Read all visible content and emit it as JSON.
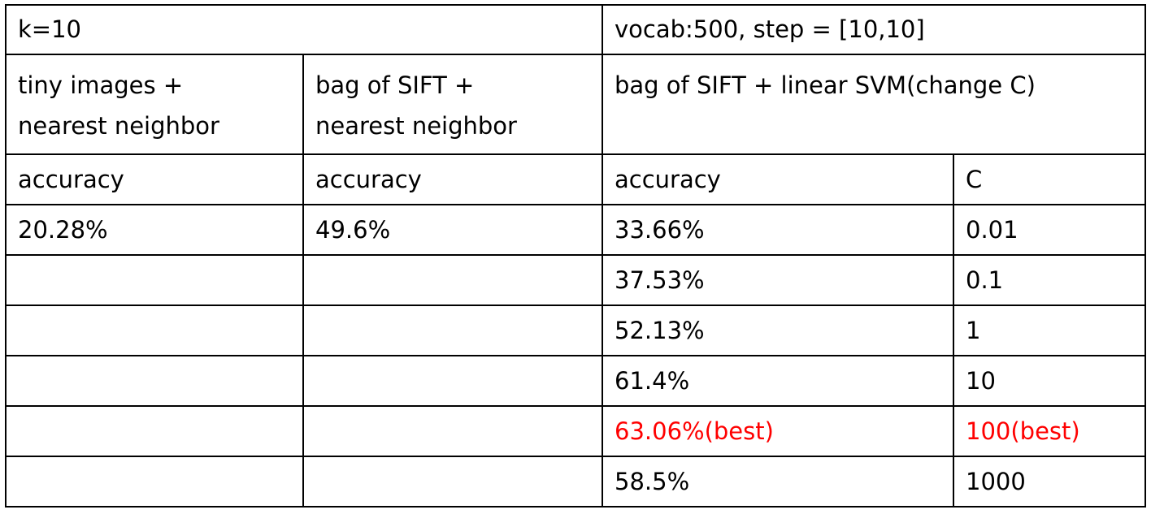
{
  "header": {
    "k": "k=10",
    "svm_setting": "vocab:500, step = [10,10]"
  },
  "methods": {
    "tiny_nn": [
      "tiny images +",
      "nearest neighbor"
    ],
    "sift_nn": [
      "bag of SIFT +",
      "nearest neighbor"
    ],
    "sift_svm": "bag of SIFT + linear SVM(change C)"
  },
  "columns": {
    "tiny_nn": "accuracy",
    "sift_nn": "accuracy",
    "svm_accuracy": "accuracy",
    "svm_c": "C"
  },
  "results": {
    "tiny_nn_accuracy": "20.28%",
    "sift_nn_accuracy": "49.6%",
    "svm": [
      {
        "accuracy": "33.66%",
        "c": "0.01"
      },
      {
        "accuracy": "37.53%",
        "c": "0.1"
      },
      {
        "accuracy": "52.13%",
        "c": "1"
      },
      {
        "accuracy": "61.4%",
        "c": "10"
      },
      {
        "accuracy": "63.06%(best)",
        "c": "100(best)"
      },
      {
        "accuracy": "58.5%",
        "c": "1000"
      }
    ]
  },
  "highlight_color": "#ff0000"
}
